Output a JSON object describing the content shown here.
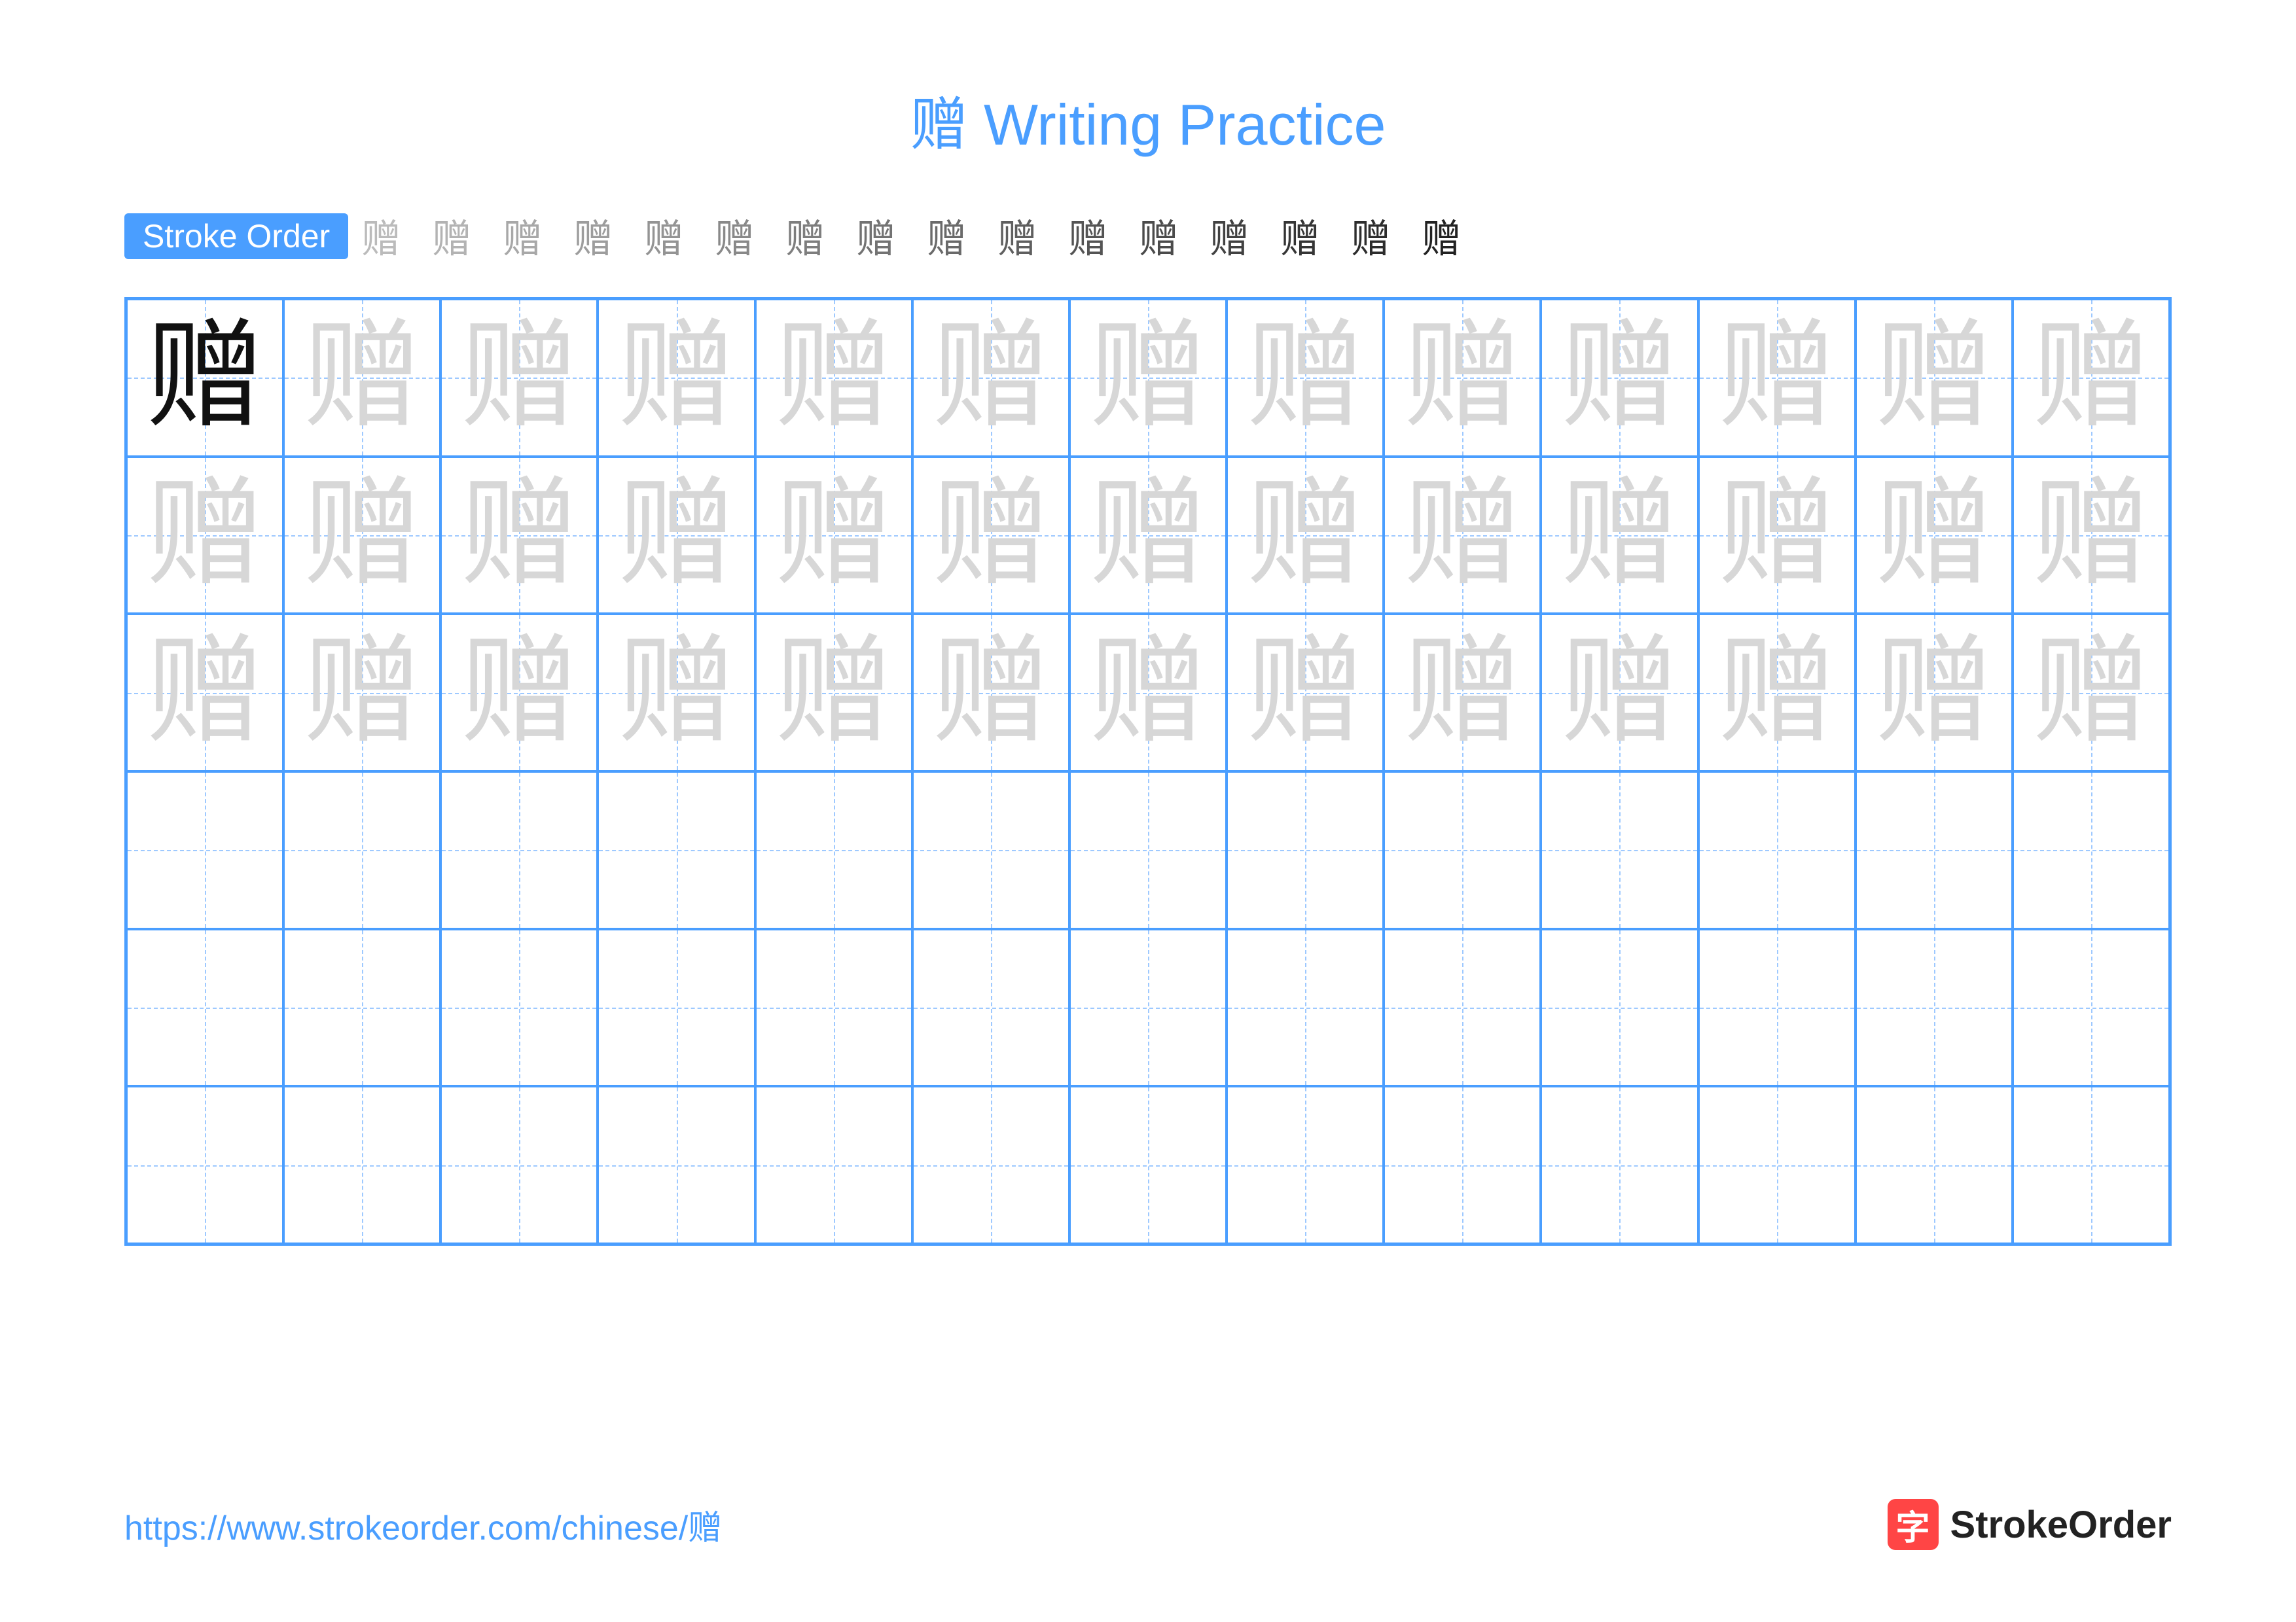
{
  "title": "赠 Writing Practice",
  "stroke_order_label": "Stroke Order",
  "character": "赠",
  "stroke_count": 16,
  "grid": {
    "rows": 6,
    "cols": 13,
    "solid_cells": [
      [
        0,
        0
      ]
    ],
    "trace_rows": [
      0,
      1,
      2
    ],
    "border_color": "#4a9eff",
    "guide_color": "#9ec9ff",
    "solid_color": "#111111",
    "trace_color": "#d7d7d7",
    "char_fontsize": 180
  },
  "colors": {
    "accent": "#4a9eff",
    "text": "#222222",
    "badge_bg": "#4a9eff",
    "badge_text": "#ffffff",
    "logo_bg": "#ff4545",
    "logo_fg": "#ffffff"
  },
  "footer": {
    "url": "https://www.strokeorder.com/chinese/赠",
    "logo_char": "字",
    "logo_text": "StrokeOrder"
  }
}
